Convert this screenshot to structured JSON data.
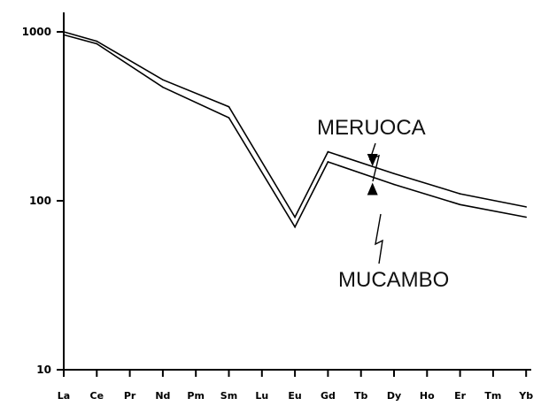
{
  "chart_data": {
    "type": "line",
    "title": "",
    "xlabel": "",
    "ylabel": "",
    "y_scale": "log",
    "ylim": [
      10,
      2000
    ],
    "yticks": [
      {
        "value": 1000,
        "label": "1000"
      },
      {
        "value": 100,
        "label": "100"
      },
      {
        "value": 10,
        "label": "10"
      }
    ],
    "categories": [
      "La",
      "Ce",
      "Pr",
      "Nd",
      "Pm",
      "Sm",
      "Lu",
      "Eu",
      "Gd",
      "Tb",
      "Dy",
      "Ho",
      "Er",
      "Tm",
      "Yb"
    ],
    "grid": false,
    "legend": "none",
    "line_color": "#000000",
    "series": [
      {
        "name": "MERUOCA",
        "points": [
          {
            "category": "La",
            "value": 1000
          },
          {
            "category": "Ce",
            "value": 880
          },
          {
            "category": "Nd",
            "value": 520
          },
          {
            "category": "Sm",
            "value": 360
          },
          {
            "category": "Eu",
            "value": 80
          },
          {
            "category": "Gd",
            "value": 195
          },
          {
            "category": "Dy",
            "value": 145
          },
          {
            "category": "Er",
            "value": 110
          },
          {
            "category": "Yb",
            "value": 92
          }
        ]
      },
      {
        "name": "MUCAMBO",
        "points": [
          {
            "category": "La",
            "value": 960
          },
          {
            "category": "Ce",
            "value": 850
          },
          {
            "category": "Nd",
            "value": 470
          },
          {
            "category": "Sm",
            "value": 310
          },
          {
            "category": "Eu",
            "value": 70
          },
          {
            "category": "Gd",
            "value": 170
          },
          {
            "category": "Dy",
            "value": 125
          },
          {
            "category": "Er",
            "value": 95
          },
          {
            "category": "Yb",
            "value": 80
          }
        ]
      }
    ],
    "annotations": [
      {
        "text": "MERUOCA",
        "series": "MERUOCA",
        "points_to": {
          "category": "Tb",
          "value": 160
        }
      },
      {
        "text": "MUCAMBO",
        "series": "MUCAMBO",
        "points_to": {
          "category": "Tb",
          "value": 128
        }
      }
    ]
  }
}
